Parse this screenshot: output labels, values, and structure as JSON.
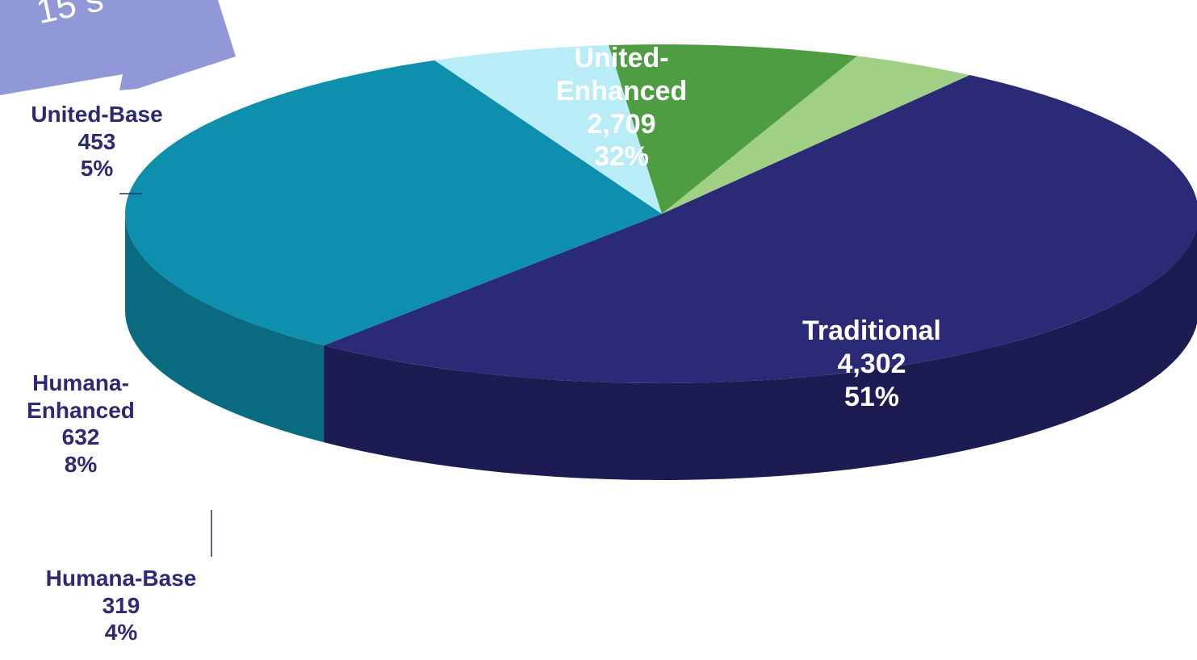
{
  "chart_data": {
    "type": "pie",
    "style": "3d-exploded-tilted",
    "title": "",
    "slices": [
      {
        "name": "Traditional",
        "value": 4302,
        "value_label": "4,302",
        "percent_label": "51%",
        "color": "#2b2a76",
        "side_color": "#1c1b52",
        "label_position": "inside"
      },
      {
        "name": "United-Enhanced",
        "name_lines": [
          "United-",
          "Enhanced"
        ],
        "value": 2709,
        "value_label": "2,709",
        "percent_label": "32%",
        "color": "#0e8fad",
        "side_color": "#0a6a80",
        "label_position": "inside"
      },
      {
        "name": "United-Base",
        "value": 453,
        "value_label": "453",
        "percent_label": "5%",
        "color": "#b8ecf7",
        "side_color": "#8ab7c2",
        "label_position": "outside"
      },
      {
        "name": "Humana-Enhanced",
        "name_lines": [
          "Humana-",
          "Enhanced"
        ],
        "value": 632,
        "value_label": "632",
        "percent_label": "8%",
        "color": "#4f9d42",
        "side_color": "#3a7a31",
        "label_position": "outside"
      },
      {
        "name": "Humana-Base",
        "value": 319,
        "value_label": "319",
        "percent_label": "4%",
        "color": "#9fd084",
        "side_color": "#7daa68",
        "label_position": "outside"
      }
    ]
  },
  "callout_arrow": {
    "text": "15   s",
    "color": "#9098d8"
  }
}
